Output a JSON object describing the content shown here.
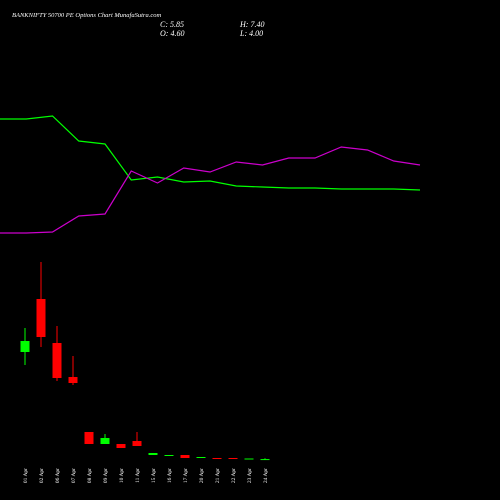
{
  "chart_data": [
    {
      "type": "candlestick",
      "title": "BANKNIFTY 50700 PE Options Chart MunafaSutra.com",
      "info": [
        "C: 5.85",
        "H: 7.40",
        "O: 4.60",
        "L: 4.00"
      ],
      "categories": [
        "01 Apr",
        "02 Apr",
        "06 Apr",
        "07 Apr",
        "08 Apr",
        "09 Apr",
        "10 Apr",
        "11 Apr",
        "15 Apr",
        "16 Apr",
        "17 Apr",
        "20 Apr",
        "21 Apr",
        "22 Apr",
        "23 Apr",
        "24 Apr"
      ],
      "open": [
        220,
        326,
        238,
        170,
        60,
        36,
        36,
        42,
        14,
        12,
        14,
        8,
        8,
        8,
        6,
        4.6
      ],
      "high": [
        268,
        400,
        272,
        212,
        60,
        56,
        36,
        60,
        18,
        14,
        14,
        10,
        8,
        8,
        7,
        7.4
      ],
      "low": [
        194,
        230,
        162,
        154,
        36,
        36,
        28,
        32,
        14,
        12,
        8,
        8,
        6,
        6,
        6,
        4.0
      ],
      "close": [
        242,
        250,
        168,
        158,
        36,
        48,
        28,
        32,
        18,
        14,
        8,
        10,
        6,
        6,
        7,
        5.85
      ],
      "up_color": "#00ff00",
      "down_color": "#ff0000",
      "ylim": [
        0,
        924
      ]
    },
    {
      "type": "line",
      "series": [
        {
          "color": "#00ff00",
          "values": [
            381,
            381,
            384,
            359,
            356,
            320,
            323,
            318,
            319,
            314,
            313,
            312,
            312,
            311,
            311,
            311,
            310
          ]
        },
        {
          "color": "#cc00cc",
          "values": [
            267,
            267,
            268,
            284,
            286,
            329,
            317,
            332,
            328,
            338,
            335,
            342,
            342,
            353,
            350,
            339,
            335
          ]
        }
      ],
      "ylim": [
        0,
        500
      ]
    }
  ]
}
